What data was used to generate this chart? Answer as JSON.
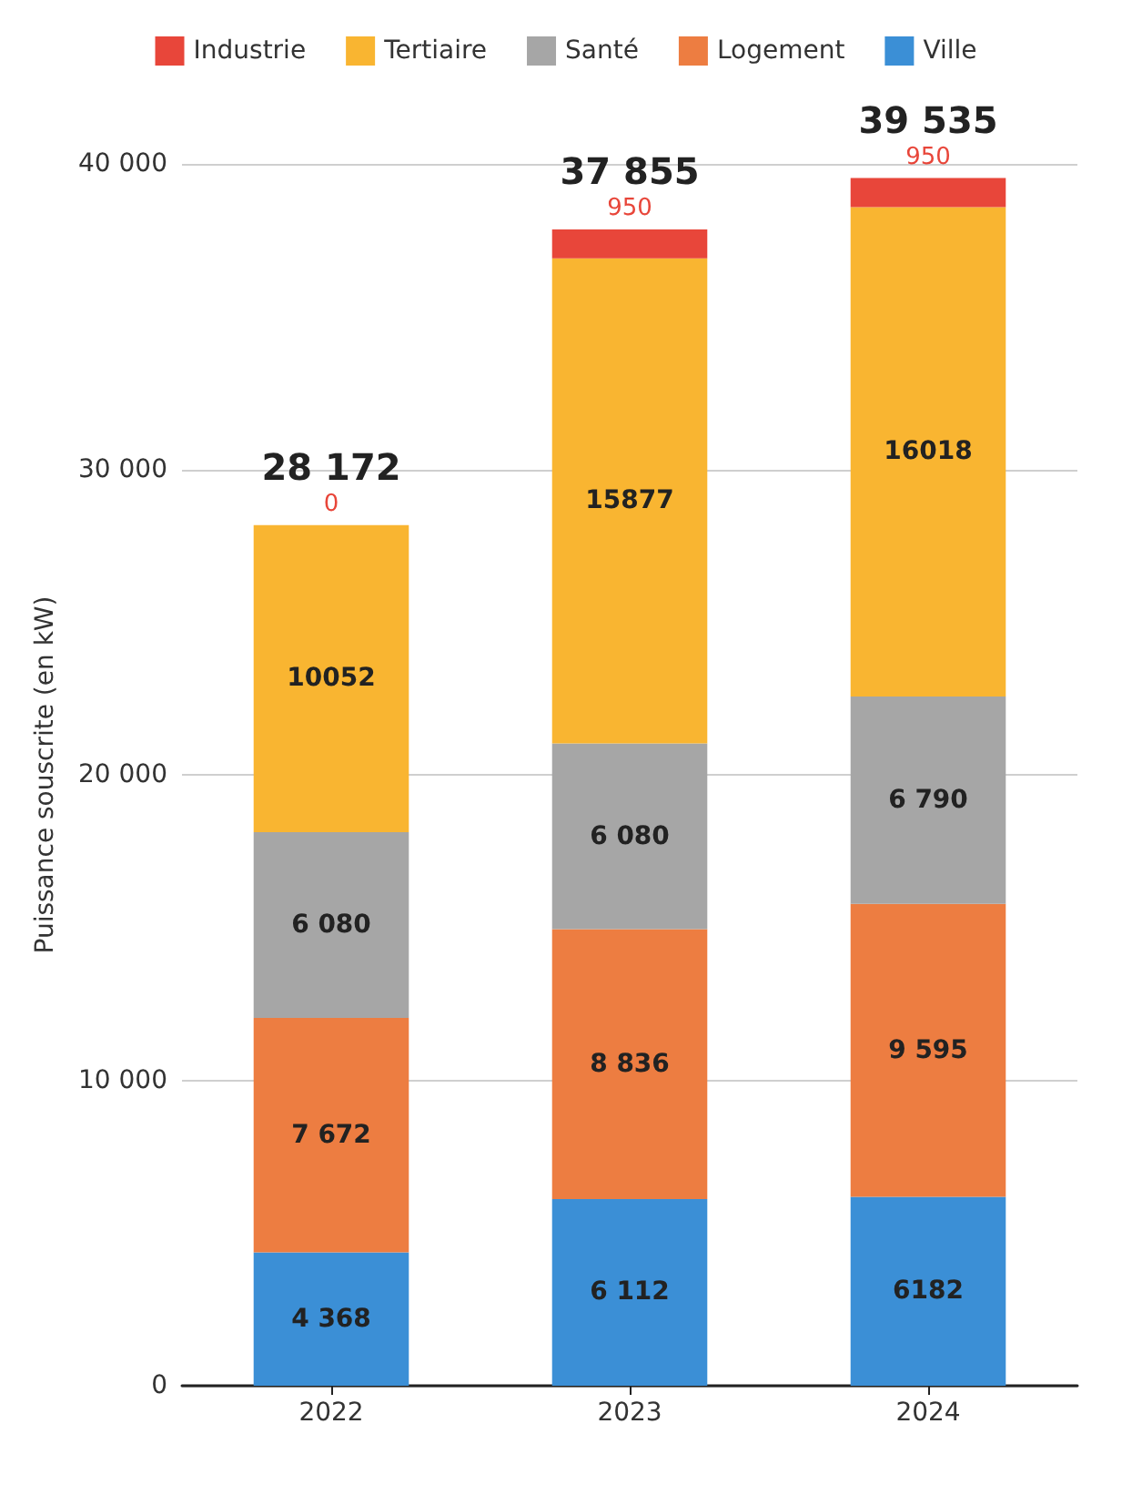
{
  "chart_data": {
    "type": "bar",
    "stacked": true,
    "ylabel": "Puissance souscrite (en kW)",
    "categories": [
      "2022",
      "2023",
      "2024"
    ],
    "series": [
      {
        "name": "Ville",
        "color": "#3b8fd6",
        "values": [
          4368,
          6112,
          6182
        ],
        "value_labels": [
          "4 368",
          "6 112",
          "6182"
        ]
      },
      {
        "name": "Logement",
        "color": "#ed7d41",
        "values": [
          7672,
          8836,
          9595
        ],
        "value_labels": [
          "7 672",
          "8 836",
          "9 595"
        ]
      },
      {
        "name": "Santé",
        "color": "#a6a6a6",
        "values": [
          6080,
          6080,
          6790
        ],
        "value_labels": [
          "6 080",
          "6 080",
          "6 790"
        ]
      },
      {
        "name": "Tertiaire",
        "color": "#f9b531",
        "values": [
          10052,
          15877,
          16018
        ],
        "value_labels": [
          "10052",
          "15877",
          "16018"
        ]
      },
      {
        "name": "Industrie",
        "color": "#e8463a",
        "values": [
          0,
          950,
          950
        ],
        "value_labels": [
          "0",
          "950",
          "950"
        ]
      }
    ],
    "totals": [
      "28 172",
      "37 855",
      "39 535"
    ],
    "ylim": [
      0,
      40000
    ],
    "yticks": [
      0,
      {
        "value": 10000,
        "label": "10 000"
      },
      {
        "value": 20000,
        "label": "20 000"
      },
      {
        "value": 30000,
        "label": "30 000"
      },
      {
        "value": 40000,
        "label": "40 000"
      }
    ],
    "grid": "y",
    "legend": "top"
  }
}
